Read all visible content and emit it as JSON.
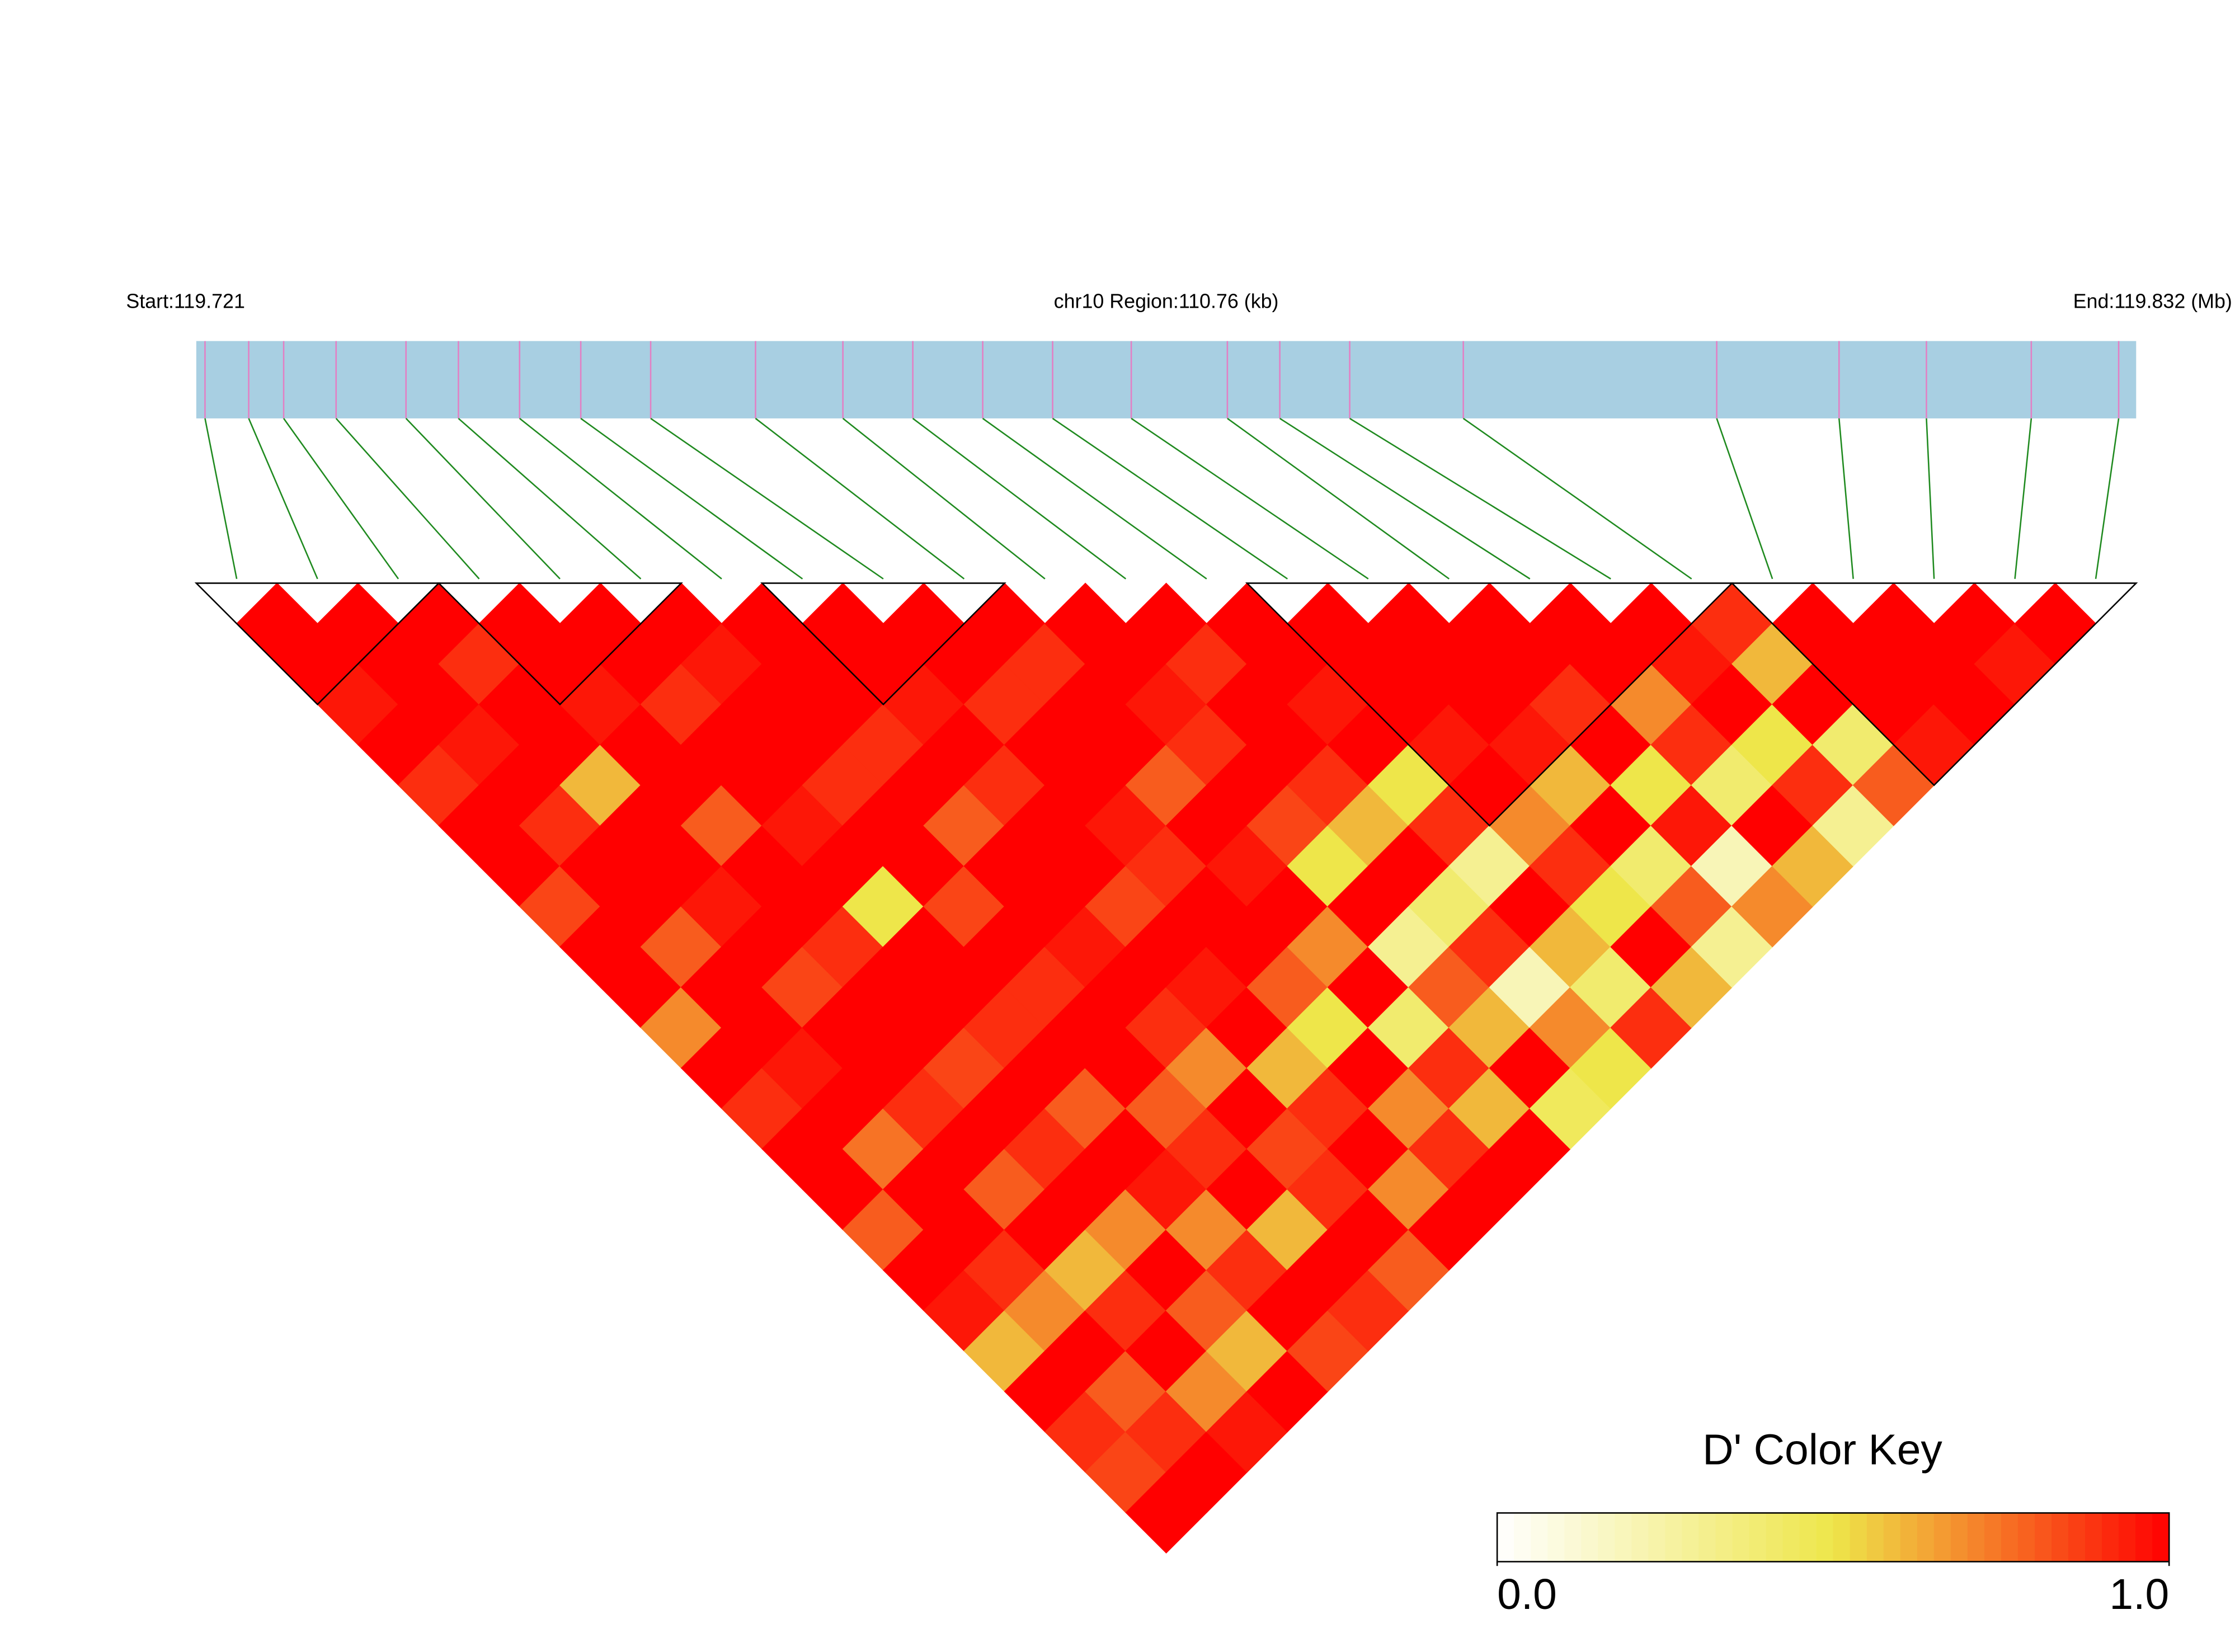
{
  "chart_data": {
    "type": "ld-heatmap",
    "start_label": "Start:119.721",
    "region_label": "chr10 Region:110.76 (kb)",
    "end_label": "End:119.832 (Mb)",
    "key_title": "D' Color Key",
    "xlim": [
      119.721,
      119.832
    ],
    "positions": [
      119.7215,
      119.724,
      119.726,
      119.729,
      119.733,
      119.736,
      119.7395,
      119.743,
      119.747,
      119.753,
      119.758,
      119.762,
      119.766,
      119.77,
      119.7745,
      119.78,
      119.783,
      119.787,
      119.7935,
      119.808,
      119.815,
      119.82,
      119.826,
      119.831
    ],
    "ld": [
      [
        1,
        1,
        0.95,
        1,
        0.9,
        1,
        1,
        0.85,
        1,
        1,
        0.7,
        1,
        0.9,
        1,
        1,
        0.8,
        1,
        0.95,
        0.6,
        1,
        0.9,
        0.85,
        1
      ],
      [
        1,
        1,
        1,
        0.95,
        1,
        0.9,
        1,
        1,
        0.8,
        1,
        1,
        0.95,
        1,
        0.75,
        1,
        1,
        0.9,
        0.7,
        1,
        0.8,
        0.9,
        1
      ],
      [
        1,
        0.9,
        1,
        1,
        0.6,
        1,
        1,
        0.95,
        1,
        0.85,
        1,
        1,
        0.9,
        1,
        0.8,
        1,
        0.6,
        0.9,
        1,
        0.7,
        0.95
      ],
      [
        1,
        1,
        0.95,
        1,
        1,
        0.8,
        1,
        1,
        0.9,
        1,
        1,
        0.85,
        1,
        0.9,
        1,
        0.7,
        1,
        0.8,
        0.6,
        1
      ],
      [
        1,
        1,
        0.9,
        1,
        1,
        0.95,
        1,
        0.5,
        1,
        1,
        0.9,
        1,
        0.8,
        1,
        0.95,
        0.7,
        0.9,
        1,
        0.85
      ],
      [
        1,
        0.95,
        1,
        1,
        0.9,
        1,
        1,
        0.85,
        1,
        0.9,
        1,
        1,
        0.8,
        0.9,
        1,
        0.6,
        1,
        0.9
      ],
      [
        1,
        1,
        1,
        0.9,
        1,
        0.8,
        1,
        1,
        0.95,
        1,
        0.9,
        0.7,
        1,
        0.85,
        0.9,
        1,
        0.8
      ],
      [
        1,
        1,
        0.95,
        1,
        0.9,
        1,
        1,
        0.85,
        1,
        0.95,
        1,
        0.6,
        0.9,
        1,
        0.7,
        1
      ],
      [
        1,
        1,
        0.9,
        1,
        1,
        0.95,
        0.9,
        1,
        1,
        0.8,
        0.5,
        1,
        0.7,
        0.9,
        1
      ],
      [
        1,
        0.9,
        1,
        1,
        0.8,
        1,
        0.95,
        1,
        0.7,
        1,
        0.4,
        0.9,
        0.6,
        1
      ],
      [
        1,
        1,
        0.95,
        0.9,
        1,
        0.85,
        0.5,
        1,
        0.3,
        0.8,
        0.6,
        1,
        0.45
      ],
      [
        1,
        0.9,
        1,
        1,
        0.9,
        0.6,
        1,
        0.4,
        0.9,
        0.2,
        0.7,
        0.5
      ],
      [
        1,
        1,
        0.95,
        1,
        0.5,
        0.9,
        0.3,
        1,
        0.6,
        0.4,
        0.9
      ],
      [
        1,
        1,
        1,
        0.95,
        1,
        0.7,
        0.9,
        0.5,
        1,
        0.6
      ],
      [
        1,
        1,
        1,
        0.95,
        0.6,
        1,
        0.4,
        0.8,
        0.3
      ],
      [
        1,
        1,
        0.9,
        1,
        0.5,
        0.95,
        0.2,
        0.7
      ],
      [
        1,
        1,
        0.7,
        0.9,
        0.4,
        1,
        0.6
      ],
      [
        1,
        0.95,
        1,
        0.5,
        0.9,
        0.3
      ],
      [
        0.9,
        0.6,
        1,
        0.4,
        0.8
      ],
      [
        1,
        1,
        1,
        0.95
      ],
      [
        1,
        1,
        1
      ],
      [
        1,
        0.95
      ],
      [
        1
      ]
    ],
    "blocks": [
      [
        0,
        2
      ],
      [
        3,
        5
      ],
      [
        7,
        9
      ],
      [
        13,
        18
      ],
      [
        19,
        23
      ]
    ],
    "key_range": [
      0,
      1
    ],
    "key_ticks": [
      {
        "value": 0,
        "label": "0.0"
      },
      {
        "value": 1,
        "label": "1.0"
      }
    ],
    "colors": [
      "#ffffff",
      "#eee64a",
      "#ff0000"
    ],
    "bar_color": "#a8cfe2",
    "snp_color": "#e37fc4",
    "link_color": "#1f8a1f",
    "block_color": "#000000"
  }
}
